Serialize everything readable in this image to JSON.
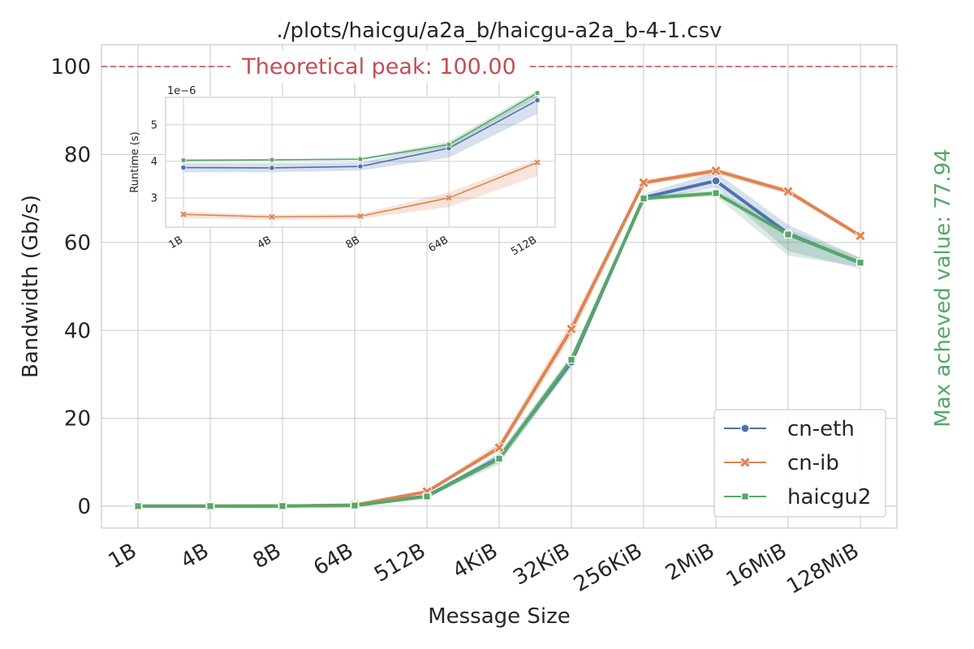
{
  "colors": {
    "cn_eth": "#4c72b0",
    "cn_ib": "#dd8452",
    "haicgu2": "#55a868",
    "peak": "#c44e52",
    "grid": "#d0d0d0",
    "frame": "#cccccc"
  },
  "chart_data": [
    {
      "type": "line",
      "title": "./plots/haicgu/a2a_b/haicgu-a2a_b-4-1.csv",
      "xlabel": "Message Size",
      "ylabel": "Bandwidth (Gb/s)",
      "ylim": [
        -5,
        105
      ],
      "yticks": [
        0,
        20,
        40,
        60,
        80,
        100
      ],
      "grid": true,
      "legend_position": "bottom-right",
      "categories": [
        "1B",
        "4B",
        "8B",
        "64B",
        "512B",
        "4KiB",
        "32KiB",
        "256KiB",
        "2MiB",
        "16MiB",
        "128MiB"
      ],
      "series": [
        {
          "name": "cn-eth",
          "marker": "circle",
          "values": [
            0.0,
            0.01,
            0.02,
            0.15,
            2.3,
            11.0,
            32.8,
            70.2,
            74.0,
            62.0,
            55.3
          ],
          "band_low": [
            0.0,
            0.01,
            0.02,
            0.14,
            2.1,
            10.0,
            31.5,
            69.5,
            72.5,
            58.0,
            54.0
          ],
          "band_high": [
            0.0,
            0.01,
            0.02,
            0.16,
            2.5,
            12.0,
            34.0,
            71.0,
            76.0,
            64.0,
            56.5
          ]
        },
        {
          "name": "cn-ib",
          "marker": "x",
          "values": [
            0.0,
            0.01,
            0.03,
            0.25,
            3.3,
            13.3,
            40.3,
            73.6,
            76.3,
            71.6,
            61.5
          ],
          "band_low": [
            0.0,
            0.01,
            0.03,
            0.23,
            3.1,
            12.5,
            38.5,
            73.0,
            75.5,
            71.0,
            61.0
          ],
          "band_high": [
            0.0,
            0.01,
            0.03,
            0.27,
            3.6,
            14.5,
            42.0,
            74.2,
            77.0,
            72.2,
            62.0
          ]
        },
        {
          "name": "haicgu2",
          "marker": "square",
          "values": [
            0.0,
            0.01,
            0.02,
            0.14,
            2.2,
            10.8,
            33.3,
            70.0,
            71.2,
            61.8,
            55.4
          ],
          "band_low": [
            0.0,
            0.01,
            0.02,
            0.13,
            2.0,
            9.5,
            32.0,
            69.5,
            70.5,
            57.0,
            54.5
          ],
          "band_high": [
            0.0,
            0.01,
            0.02,
            0.15,
            2.4,
            12.0,
            34.5,
            70.6,
            72.0,
            63.0,
            56.5
          ]
        }
      ],
      "annotations": [
        {
          "type": "hline",
          "y": 100,
          "label": "Theoretical peak: 100.00",
          "style": "dashed"
        },
        {
          "type": "side_text",
          "label": "Max acheved value: 77.94"
        }
      ]
    },
    {
      "type": "line",
      "title": "",
      "xlabel": "",
      "ylabel": "Runtime (s)",
      "offset_label": "1e−6",
      "ylim": [
        2.2,
        5.75
      ],
      "yticks": [
        3,
        4,
        5
      ],
      "grid": true,
      "categories": [
        "1B",
        "4B",
        "8B",
        "64B",
        "512B"
      ],
      "series": [
        {
          "name": "cn-eth",
          "marker": "circle",
          "values": [
            3.83,
            3.82,
            3.86,
            4.36,
            5.67
          ],
          "band_low": [
            3.7,
            3.7,
            3.75,
            4.1,
            5.3
          ],
          "band_high": [
            3.95,
            3.95,
            3.97,
            4.5,
            5.82
          ]
        },
        {
          "name": "cn-ib",
          "marker": "x",
          "values": [
            2.55,
            2.48,
            2.5,
            3.0,
            3.97
          ],
          "band_low": [
            2.45,
            2.4,
            2.43,
            2.75,
            3.6
          ],
          "band_high": [
            2.62,
            2.54,
            2.56,
            3.15,
            4.05
          ]
        },
        {
          "name": "haicgu2",
          "marker": "square",
          "values": [
            4.03,
            4.04,
            4.06,
            4.46,
            5.87
          ],
          "band_low": [
            4.0,
            4.02,
            4.04,
            4.38,
            5.75
          ],
          "band_high": [
            4.06,
            4.06,
            4.08,
            4.55,
            5.95
          ]
        }
      ]
    }
  ]
}
